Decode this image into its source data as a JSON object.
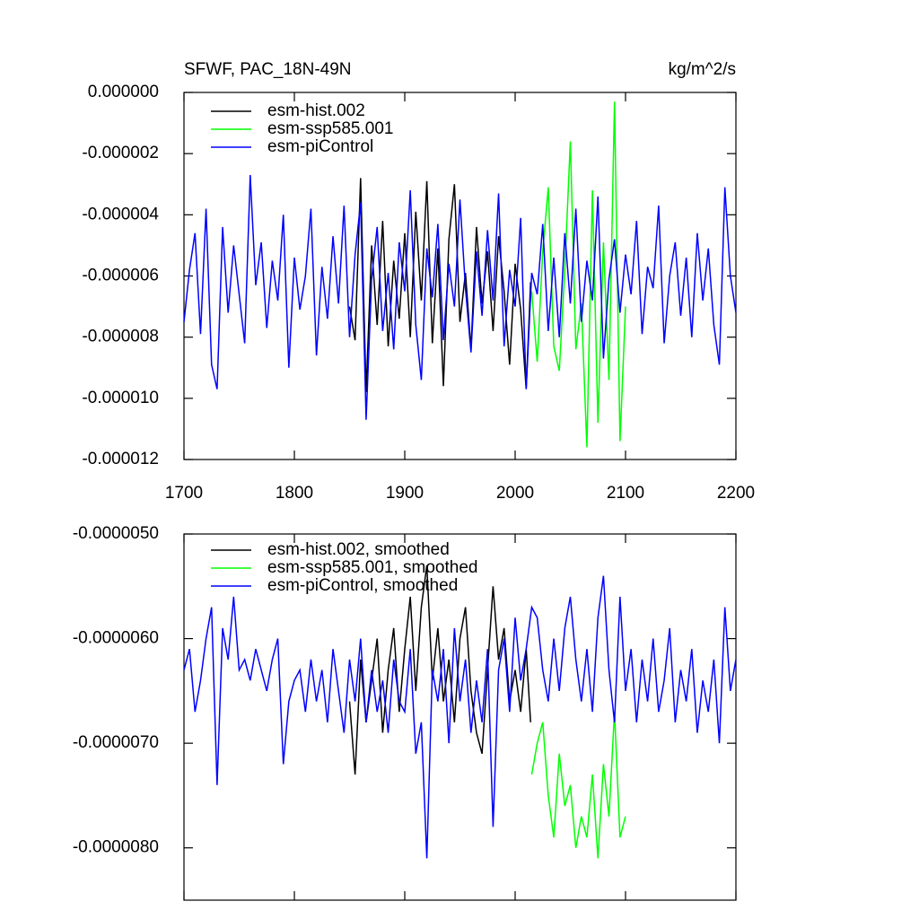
{
  "chart_data": [
    {
      "type": "line",
      "title": "SFWF, PAC_18N-49N",
      "units": "kg/m^2/s",
      "xlim": [
        1700,
        2200
      ],
      "xticks": [
        1700,
        1800,
        1900,
        2000,
        2100,
        2200
      ],
      "ylim": [
        -1.2e-05,
        0
      ],
      "yticks": [
        {
          "value": 0,
          "label": "0.000000"
        },
        {
          "value": -2e-06,
          "label": "-0.000002"
        },
        {
          "value": -4e-06,
          "label": "-0.000004"
        },
        {
          "value": -6e-06,
          "label": "-0.000006"
        },
        {
          "value": -8e-06,
          "label": "-0.000008"
        },
        {
          "value": -1e-05,
          "label": "-0.000010"
        },
        {
          "value": -1.2e-05,
          "label": "-0.000012"
        }
      ],
      "series": [
        {
          "name": "esm-hist.002",
          "color": "#000000",
          "x": [
            1850,
            1855,
            1860,
            1865,
            1870,
            1875,
            1880,
            1885,
            1890,
            1895,
            1900,
            1905,
            1910,
            1915,
            1920,
            1925,
            1930,
            1935,
            1940,
            1945,
            1950,
            1955,
            1960,
            1965,
            1970,
            1975,
            1980,
            1985,
            1990,
            1995,
            2000,
            2005,
            2010,
            2014
          ],
          "values": [
            -7e-06,
            -8.1e-06,
            -2.8e-06,
            -9.8e-06,
            -5e-06,
            -7.6e-06,
            -4.2e-06,
            -8.3e-06,
            -5.5e-06,
            -7.4e-06,
            -4.6e-06,
            -8e-06,
            -3.9e-06,
            -6.8e-06,
            -2.9e-06,
            -8.2e-06,
            -5.1e-06,
            -9.6e-06,
            -4.8e-06,
            -3e-06,
            -7.5e-06,
            -5.9e-06,
            -8.4e-06,
            -4.4e-06,
            -6.9e-06,
            -5.2e-06,
            -7.8e-06,
            -4.7e-06,
            -6.5e-06,
            -8.9e-06,
            -5.6e-06,
            -7.1e-06,
            -9.7e-06,
            -6.2e-06
          ]
        },
        {
          "name": "esm-ssp585.001",
          "color": "#00ff00",
          "x": [
            2015,
            2020,
            2025,
            2030,
            2035,
            2040,
            2045,
            2050,
            2055,
            2060,
            2065,
            2070,
            2075,
            2080,
            2085,
            2090,
            2095,
            2100
          ],
          "values": [
            -6.5e-06,
            -8.8e-06,
            -5.2e-06,
            -3.1e-06,
            -8.3e-06,
            -9.1e-06,
            -5.8e-06,
            -1.6e-06,
            -8.4e-06,
            -6.9e-06,
            -1.16e-05,
            -3.2e-06,
            -1.08e-05,
            -4.9e-06,
            -9.4e-06,
            -3e-07,
            -1.14e-05,
            -7e-06
          ]
        },
        {
          "name": "esm-piControl",
          "color": "#0000ff",
          "x": [
            1700,
            1705,
            1710,
            1715,
            1720,
            1725,
            1730,
            1735,
            1740,
            1745,
            1750,
            1755,
            1760,
            1765,
            1770,
            1775,
            1780,
            1785,
            1790,
            1795,
            1800,
            1805,
            1810,
            1815,
            1820,
            1825,
            1830,
            1835,
            1840,
            1845,
            1850,
            1855,
            1860,
            1865,
            1870,
            1875,
            1880,
            1885,
            1890,
            1895,
            1900,
            1905,
            1910,
            1915,
            1920,
            1925,
            1930,
            1935,
            1940,
            1945,
            1950,
            1955,
            1960,
            1965,
            1970,
            1975,
            1980,
            1985,
            1990,
            1995,
            2000,
            2005,
            2010,
            2015,
            2020,
            2025,
            2030,
            2035,
            2040,
            2045,
            2050,
            2055,
            2060,
            2065,
            2070,
            2075,
            2080,
            2085,
            2090,
            2095,
            2100,
            2105,
            2110,
            2115,
            2120,
            2125,
            2130,
            2135,
            2140,
            2145,
            2150,
            2155,
            2160,
            2165,
            2170,
            2175,
            2180,
            2185,
            2190,
            2195,
            2200
          ],
          "values": [
            -7.5e-06,
            -5.8e-06,
            -4.6e-06,
            -7.9e-06,
            -3.8e-06,
            -8.9e-06,
            -9.7e-06,
            -4.4e-06,
            -7.2e-06,
            -5e-06,
            -6.6e-06,
            -8.2e-06,
            -2.7e-06,
            -6.3e-06,
            -4.9e-06,
            -7.7e-06,
            -5.5e-06,
            -6.8e-06,
            -4e-06,
            -9e-06,
            -5.4e-06,
            -7.1e-06,
            -6e-06,
            -3.8e-06,
            -8.6e-06,
            -5.7e-06,
            -7.4e-06,
            -4.7e-06,
            -6.9e-06,
            -3.7e-06,
            -8e-06,
            -5.3e-06,
            -3.6e-06,
            -1.07e-05,
            -6.1e-06,
            -4.4e-06,
            -7.8e-06,
            -5.9e-06,
            -8.4e-06,
            -4.9e-06,
            -6.5e-06,
            -3.2e-06,
            -7.6e-06,
            -9.4e-06,
            -5.1e-06,
            -6.7e-06,
            -4.3e-06,
            -8.1e-06,
            -5.6e-06,
            -7e-06,
            -3.5e-06,
            -6.4e-06,
            -8.5e-06,
            -5.2e-06,
            -7.3e-06,
            -4.5e-06,
            -6.8e-06,
            -3.3e-06,
            -8.3e-06,
            -5.8e-06,
            -7e-06,
            -4.1e-06,
            -9.7e-06,
            -5.9e-06,
            -6.6e-06,
            -4.3e-06,
            -7.8e-06,
            -5.4e-06,
            -8e-06,
            -4.6e-06,
            -6.9e-06,
            -3.8e-06,
            -7.5e-06,
            -5.5e-06,
            -6.8e-06,
            -3.4e-06,
            -8.7e-06,
            -6.1e-06,
            -4.8e-06,
            -7.2e-06,
            -5.3e-06,
            -6.6e-06,
            -4.2e-06,
            -7.9e-06,
            -5.7e-06,
            -6.4e-06,
            -3.7e-06,
            -8.2e-06,
            -6e-06,
            -4.9e-06,
            -7.3e-06,
            -5.4e-06,
            -8e-06,
            -4.6e-06,
            -6.8e-06,
            -5.1e-06,
            -7.6e-06,
            -8.9e-06,
            -3.1e-06,
            -6e-06,
            -7.2e-06
          ]
        }
      ]
    },
    {
      "type": "line",
      "xlim": [
        1700,
        2200
      ],
      "xticks": [
        1700,
        1800,
        1900,
        2000,
        2100,
        2200
      ],
      "ylim": [
        -8.5e-06,
        -5e-06
      ],
      "yticks": [
        {
          "value": -5e-06,
          "label": "-0.0000050"
        },
        {
          "value": -6e-06,
          "label": "-0.0000060"
        },
        {
          "value": -7e-06,
          "label": "-0.0000070"
        },
        {
          "value": -8e-06,
          "label": "-0.0000080"
        }
      ],
      "series": [
        {
          "name": "esm-hist.002, smoothed",
          "color": "#000000",
          "x": [
            1850,
            1855,
            1860,
            1865,
            1870,
            1875,
            1880,
            1885,
            1890,
            1895,
            1900,
            1905,
            1910,
            1915,
            1920,
            1925,
            1930,
            1935,
            1940,
            1945,
            1950,
            1955,
            1960,
            1965,
            1970,
            1975,
            1980,
            1985,
            1990,
            1995,
            2000,
            2005,
            2010,
            2014
          ],
          "values": [
            -6.6e-06,
            -7.3e-06,
            -6.2e-06,
            -6.8e-06,
            -6.4e-06,
            -6e-06,
            -6.9e-06,
            -6.3e-06,
            -5.9e-06,
            -6.7e-06,
            -6.1e-06,
            -5.6e-06,
            -6.5e-06,
            -5.7e-06,
            -5.3e-06,
            -6.4e-06,
            -5.9e-06,
            -6.6e-06,
            -6.2e-06,
            -6.8e-06,
            -6e-06,
            -5.7e-06,
            -6.5e-06,
            -6.9e-06,
            -7.1e-06,
            -6.3e-06,
            -5.5e-06,
            -6.2e-06,
            -5.9e-06,
            -6.6e-06,
            -6.3e-06,
            -6.7e-06,
            -6.1e-06,
            -6.8e-06
          ]
        },
        {
          "name": "esm-ssp585.001, smoothed",
          "color": "#00ff00",
          "x": [
            2015,
            2020,
            2025,
            2030,
            2035,
            2040,
            2045,
            2050,
            2055,
            2060,
            2065,
            2070,
            2075,
            2080,
            2085,
            2090,
            2095,
            2100
          ],
          "values": [
            -7.3e-06,
            -7e-06,
            -6.8e-06,
            -7.5e-06,
            -7.9e-06,
            -7.1e-06,
            -7.6e-06,
            -7.4e-06,
            -8e-06,
            -7.7e-06,
            -7.9e-06,
            -7.3e-06,
            -8.1e-06,
            -7.2e-06,
            -7.7e-06,
            -6.7e-06,
            -7.9e-06,
            -7.7e-06
          ]
        },
        {
          "name": "esm-piControl, smoothed",
          "color": "#0000ff",
          "x": [
            1700,
            1705,
            1710,
            1715,
            1720,
            1725,
            1730,
            1735,
            1740,
            1745,
            1750,
            1755,
            1760,
            1765,
            1770,
            1775,
            1780,
            1785,
            1790,
            1795,
            1800,
            1805,
            1810,
            1815,
            1820,
            1825,
            1830,
            1835,
            1840,
            1845,
            1850,
            1855,
            1860,
            1865,
            1870,
            1875,
            1880,
            1885,
            1890,
            1895,
            1900,
            1905,
            1910,
            1915,
            1920,
            1925,
            1930,
            1935,
            1940,
            1945,
            1950,
            1955,
            1960,
            1965,
            1970,
            1975,
            1980,
            1985,
            1990,
            1995,
            2000,
            2005,
            2010,
            2015,
            2020,
            2025,
            2030,
            2035,
            2040,
            2045,
            2050,
            2055,
            2060,
            2065,
            2070,
            2075,
            2080,
            2085,
            2090,
            2095,
            2100,
            2105,
            2110,
            2115,
            2120,
            2125,
            2130,
            2135,
            2140,
            2145,
            2150,
            2155,
            2160,
            2165,
            2170,
            2175,
            2180,
            2185,
            2190,
            2195,
            2200
          ],
          "values": [
            -6.3e-06,
            -6.1e-06,
            -6.7e-06,
            -6.4e-06,
            -6e-06,
            -5.7e-06,
            -7.4e-06,
            -5.9e-06,
            -6.2e-06,
            -5.6e-06,
            -6.3e-06,
            -6.2e-06,
            -6.4e-06,
            -6.1e-06,
            -6.3e-06,
            -6.5e-06,
            -6.2e-06,
            -6e-06,
            -7.2e-06,
            -6.6e-06,
            -6.4e-06,
            -6.3e-06,
            -6.7e-06,
            -6.2e-06,
            -6.6e-06,
            -6.3e-06,
            -6.8e-06,
            -6.1e-06,
            -6.5e-06,
            -6.9e-06,
            -6.2e-06,
            -6.6e-06,
            -6e-06,
            -6.8e-06,
            -6.3e-06,
            -6.7e-06,
            -6.4e-06,
            -6.9e-06,
            -6.2e-06,
            -6.6e-06,
            -6.7e-06,
            -6.1e-06,
            -7.1e-06,
            -6.8e-06,
            -8.1e-06,
            -6.3e-06,
            -6.6e-06,
            -6.1e-06,
            -7e-06,
            -5.9e-06,
            -6.6e-06,
            -6.2e-06,
            -6.9e-06,
            -6.4e-06,
            -6.8e-06,
            -6.1e-06,
            -7.8e-06,
            -6.3e-06,
            -6e-06,
            -6.7e-06,
            -5.8e-06,
            -6.4e-06,
            -6.1e-06,
            -5.7e-06,
            -5.8e-06,
            -6.3e-06,
            -6.6e-06,
            -6e-06,
            -6.5e-06,
            -5.9e-06,
            -5.6e-06,
            -6.2e-06,
            -6.6e-06,
            -6.1e-06,
            -6.7e-06,
            -5.8e-06,
            -5.4e-06,
            -6.3e-06,
            -6.8e-06,
            -5.6e-06,
            -6.5e-06,
            -6.1e-06,
            -6.8e-06,
            -6.2e-06,
            -6.6e-06,
            -6e-06,
            -6.7e-06,
            -6.4e-06,
            -5.9e-06,
            -6.8e-06,
            -6.3e-06,
            -6.6e-06,
            -6.1e-06,
            -6.9e-06,
            -6.4e-06,
            -6.7e-06,
            -6.2e-06,
            -7e-06,
            -5.7e-06,
            -6.5e-06,
            -6.2e-06
          ]
        }
      ]
    }
  ]
}
